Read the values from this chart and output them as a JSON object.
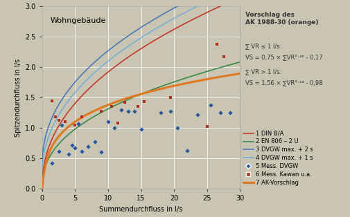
{
  "title": "Wohngebäude",
  "xlabel": "Summendurchfluss in l/s",
  "ylabel": "Spitzendurchfluss in l/s",
  "xlim": [
    0,
    30
  ],
  "ylim": [
    0,
    3.0
  ],
  "xticks": [
    0,
    5,
    10,
    15,
    20,
    25,
    30
  ],
  "yticks": [
    0,
    0.5,
    1.0,
    1.5,
    2.0,
    2.5,
    3.0
  ],
  "bg_color": "#c9c5b2",
  "plot_bg_color": "#c9c5b2",
  "color_din": "#c0392b",
  "color_en806": "#3a8a4a",
  "color_dvgw2s": "#4a7ab5",
  "color_dvgw1s": "#7aafd4",
  "color_ak": "#e07820",
  "color_meas_dvgw": "#2255a0",
  "color_meas_kawan": "#b03020",
  "legend_entries": [
    "1 DIN B/A",
    "2 EN 806 – 2 U",
    "3 DVGW max. + 2 s",
    "4 DVGW max. + 1 s",
    "5 Mess. DVGW",
    "6 Mess. Kawan u.a.",
    "7 AK-Vorschlag"
  ],
  "meas_dvgw_x": [
    1.5,
    2.5,
    3.0,
    4.0,
    4.5,
    5.0,
    5.5,
    6.0,
    7.0,
    8.0,
    9.0,
    10.0,
    11.0,
    12.0,
    13.0,
    14.0,
    15.0,
    18.0,
    19.5,
    20.5,
    22.0,
    23.5,
    25.5,
    27.0,
    28.5
  ],
  "meas_dvgw_y": [
    0.42,
    0.62,
    1.05,
    0.57,
    0.72,
    0.67,
    1.07,
    0.62,
    0.7,
    0.78,
    0.6,
    1.1,
    1.0,
    1.3,
    1.28,
    1.28,
    0.98,
    1.25,
    1.28,
    1.0,
    0.63,
    1.22,
    1.38,
    1.25,
    1.25
  ],
  "meas_kawan_x": [
    1.5,
    2.0,
    2.5,
    3.5,
    5.0,
    6.0,
    9.0,
    10.5,
    11.5,
    12.5,
    14.5,
    15.5,
    19.5,
    25.0,
    26.5,
    27.5
  ],
  "meas_kawan_y": [
    1.45,
    1.18,
    1.13,
    1.1,
    1.05,
    1.18,
    1.28,
    1.35,
    1.08,
    1.42,
    1.35,
    1.43,
    1.5,
    1.03,
    2.38,
    2.17
  ]
}
